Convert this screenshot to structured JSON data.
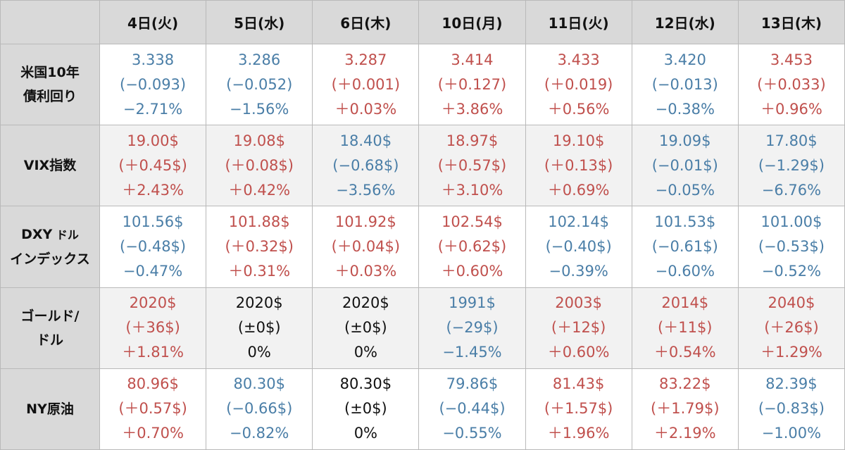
{
  "header": {
    "corner": "",
    "columns": [
      "4日(火)",
      "5日(水)",
      "6日(木)",
      "10日(月)",
      "11日(火)",
      "12日(水)",
      "13日(木)"
    ]
  },
  "colors": {
    "up": "#c0504d",
    "down": "#4a7ea7",
    "flat": "#111111",
    "header_bg": "#d9d9d9"
  },
  "rows": [
    {
      "label_line1": "米国10年",
      "label_line2": "債利回り",
      "cells": [
        {
          "v": "3.338",
          "chg": "(−0.093)",
          "pct": "−2.71%",
          "dir": "down"
        },
        {
          "v": "3.286",
          "chg": "(−0.052)",
          "pct": "−1.56%",
          "dir": "down"
        },
        {
          "v": "3.287",
          "chg": "(＋0.001)",
          "pct": "＋0.03%",
          "dir": "up"
        },
        {
          "v": "3.414",
          "chg": "(＋0.127)",
          "pct": "＋3.86%",
          "dir": "up"
        },
        {
          "v": "3.433",
          "chg": "(＋0.019)",
          "pct": "＋0.56%",
          "dir": "up"
        },
        {
          "v": "3.420",
          "chg": "(−0.013)",
          "pct": "−0.38%",
          "dir": "down"
        },
        {
          "v": "3.453",
          "chg": "(＋0.033)",
          "pct": "＋0.96%",
          "dir": "up"
        }
      ]
    },
    {
      "label_line1": "VIX指数",
      "label_line2": "",
      "cells": [
        {
          "v": "19.00$",
          "chg": "(＋0.45$)",
          "pct": "＋2.43%",
          "dir": "up"
        },
        {
          "v": "19.08$",
          "chg": "(＋0.08$)",
          "pct": "＋0.42%",
          "dir": "up"
        },
        {
          "v": "18.40$",
          "chg": "(−0.68$)",
          "pct": "−3.56%",
          "dir": "down"
        },
        {
          "v": "18.97$",
          "chg": "(＋0.57$)",
          "pct": "＋3.10%",
          "dir": "up"
        },
        {
          "v": "19.10$",
          "chg": "(＋0.13$)",
          "pct": "＋0.69%",
          "dir": "up"
        },
        {
          "v": "19.09$",
          "chg": "(−0.01$)",
          "pct": "−0.05%",
          "dir": "down"
        },
        {
          "v": "17.80$",
          "chg": "(−1.29$)",
          "pct": "−6.76%",
          "dir": "down"
        }
      ]
    },
    {
      "label_line1": "DXY",
      "label_line1_small": " ドル",
      "label_line2": "インデックス",
      "cells": [
        {
          "v": "101.56$",
          "chg": "(−0.48$)",
          "pct": "−0.47%",
          "dir": "down"
        },
        {
          "v": "101.88$",
          "chg": "(＋0.32$)",
          "pct": "＋0.31%",
          "dir": "up"
        },
        {
          "v": "101.92$",
          "chg": "(＋0.04$)",
          "pct": "＋0.03%",
          "dir": "up"
        },
        {
          "v": "102.54$",
          "chg": "(＋0.62$)",
          "pct": "＋0.60%",
          "dir": "up"
        },
        {
          "v": "102.14$",
          "chg": "(−0.40$)",
          "pct": "−0.39%",
          "dir": "down"
        },
        {
          "v": "101.53$",
          "chg": "(−0.61$)",
          "pct": "−0.60%",
          "dir": "down"
        },
        {
          "v": "101.00$",
          "chg": "(−0.53$)",
          "pct": "−0.52%",
          "dir": "down"
        }
      ]
    },
    {
      "label_line1": "ゴールド/",
      "label_line2": "ドル",
      "cells": [
        {
          "v": "2020$",
          "chg": "(＋36$)",
          "pct": "＋1.81%",
          "dir": "up"
        },
        {
          "v": "2020$",
          "chg": "(±0$)",
          "pct": "0%",
          "dir": "flat"
        },
        {
          "v": "2020$",
          "chg": "(±0$)",
          "pct": "0%",
          "dir": "flat"
        },
        {
          "v": "1991$",
          "chg": "(−29$)",
          "pct": "−1.45%",
          "dir": "down"
        },
        {
          "v": "2003$",
          "chg": "(＋12$)",
          "pct": "＋0.60%",
          "dir": "up"
        },
        {
          "v": "2014$",
          "chg": "(＋11$)",
          "pct": "＋0.54%",
          "dir": "up"
        },
        {
          "v": "2040$",
          "chg": "(＋26$)",
          "pct": "＋1.29%",
          "dir": "up"
        }
      ]
    },
    {
      "label_line1": "NY原油",
      "label_line2": "",
      "cells": [
        {
          "v": "80.96$",
          "chg": "(＋0.57$)",
          "pct": "＋0.70%",
          "dir": "up"
        },
        {
          "v": "80.30$",
          "chg": "(−0.66$)",
          "pct": "−0.82%",
          "dir": "down"
        },
        {
          "v": "80.30$",
          "chg": "(±0$)",
          "pct": "0%",
          "dir": "flat"
        },
        {
          "v": "79.86$",
          "chg": "(−0.44$)",
          "pct": "−0.55%",
          "dir": "down"
        },
        {
          "v": "81.43$",
          "chg": "(＋1.57$)",
          "pct": "＋1.96%",
          "dir": "up"
        },
        {
          "v": "83.22$",
          "chg": "(＋1.79$)",
          "pct": "＋2.19%",
          "dir": "up"
        },
        {
          "v": "82.39$",
          "chg": "(−0.83$)",
          "pct": "−1.00%",
          "dir": "down"
        }
      ]
    }
  ]
}
